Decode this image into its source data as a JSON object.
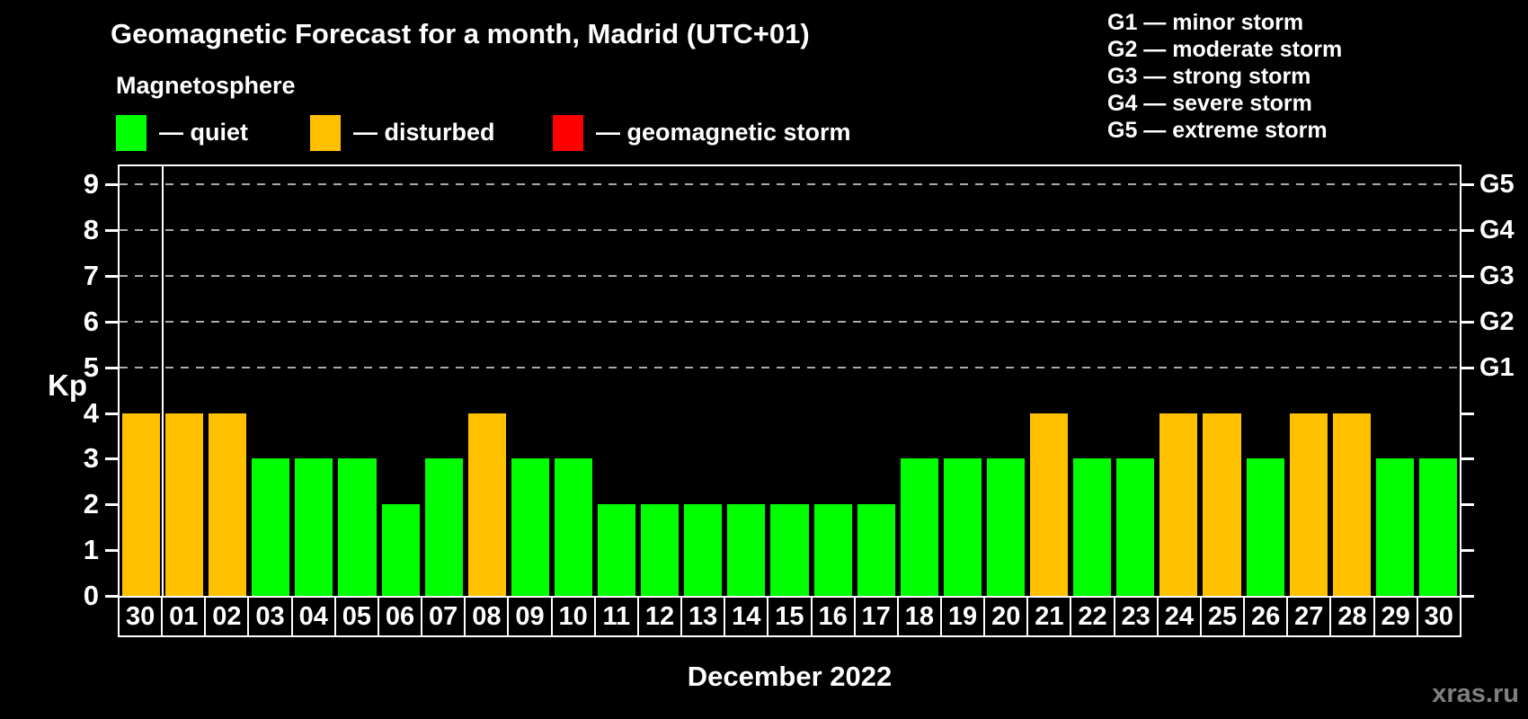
{
  "title": "Geomagnetic Forecast for a month, Madrid (UTC+01)",
  "subtitle": "Magnetosphere",
  "legend": {
    "items": [
      {
        "name": "quiet",
        "label": "— quiet",
        "color": "#00ff00"
      },
      {
        "name": "disturbed",
        "label": "— disturbed",
        "color": "#ffc000"
      },
      {
        "name": "storm",
        "label": "— geomagnetic storm",
        "color": "#ff0000"
      }
    ]
  },
  "g_legend": [
    "G1 — minor storm",
    "G2 — moderate storm",
    "G3 — strong storm",
    "G4 — severe storm",
    "G5 — extreme storm"
  ],
  "axis": {
    "y_label": "Kp"
  },
  "x_label": "December 2022",
  "watermark": "xras.ru",
  "chart_data": {
    "type": "bar",
    "title": "Geomagnetic Forecast for a month, Madrid (UTC+01)",
    "xlabel": "December 2022",
    "ylabel": "Kp",
    "ylim": [
      0,
      9.4
    ],
    "grid_on": true,
    "grid_values": [
      5,
      6,
      7,
      8,
      9
    ],
    "y_ticks": [
      0,
      1,
      2,
      3,
      4,
      5,
      6,
      7,
      8,
      9
    ],
    "right_labels": {
      "5": "G1",
      "6": "G2",
      "7": "G3",
      "8": "G4",
      "9": "G5"
    },
    "categories": [
      "30",
      "01",
      "02",
      "03",
      "04",
      "05",
      "06",
      "07",
      "08",
      "09",
      "10",
      "11",
      "12",
      "13",
      "14",
      "15",
      "16",
      "17",
      "18",
      "19",
      "20",
      "21",
      "22",
      "23",
      "24",
      "25",
      "26",
      "27",
      "28",
      "29",
      "30"
    ],
    "values": [
      4,
      4,
      4,
      3,
      3,
      3,
      2,
      3,
      4,
      3,
      3,
      2,
      2,
      2,
      2,
      2,
      2,
      2,
      3,
      3,
      3,
      4,
      3,
      3,
      4,
      4,
      3,
      4,
      4,
      3,
      3
    ],
    "states": [
      "disturbed",
      "disturbed",
      "disturbed",
      "quiet",
      "quiet",
      "quiet",
      "quiet",
      "quiet",
      "disturbed",
      "quiet",
      "quiet",
      "quiet",
      "quiet",
      "quiet",
      "quiet",
      "quiet",
      "quiet",
      "quiet",
      "quiet",
      "quiet",
      "quiet",
      "disturbed",
      "quiet",
      "quiet",
      "disturbed",
      "disturbed",
      "quiet",
      "disturbed",
      "disturbed",
      "quiet",
      "quiet"
    ],
    "colors": {
      "quiet": "#00ff00",
      "disturbed": "#ffc000",
      "storm": "#ff0000"
    },
    "month_start_index": 1
  }
}
